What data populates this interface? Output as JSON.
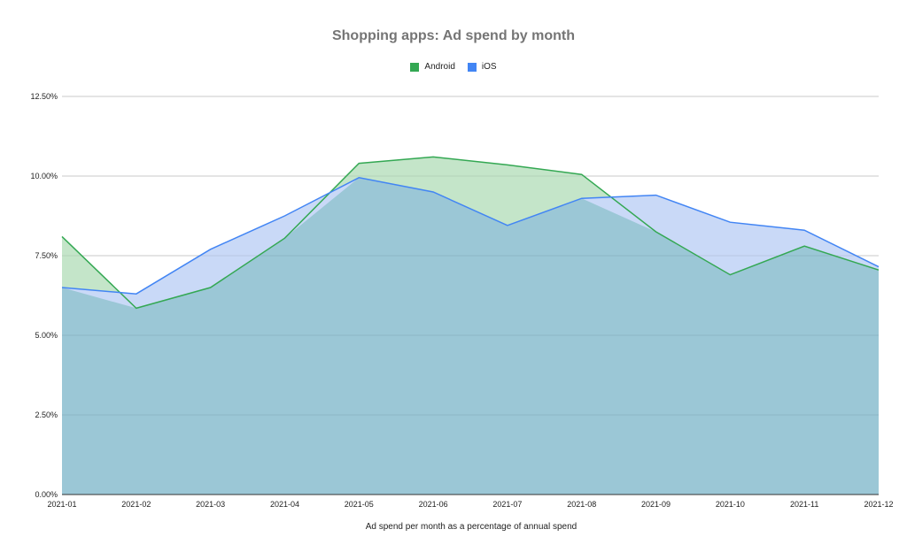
{
  "chart_data": {
    "type": "area",
    "title": "Shopping apps: Ad spend by month",
    "xlabel": "Ad spend per month as a percentage of annual spend",
    "ylabel": "",
    "categories": [
      "2021-01",
      "2021-02",
      "2021-03",
      "2021-04",
      "2021-05",
      "2021-06",
      "2021-07",
      "2021-08",
      "2021-09",
      "2021-10",
      "2021-11",
      "2021-12"
    ],
    "y_ticks": [
      "0.00%",
      "2.50%",
      "5.00%",
      "7.50%",
      "10.00%",
      "12.50%"
    ],
    "ylim": [
      0,
      12.5
    ],
    "grid": true,
    "legend_position": "top",
    "series": [
      {
        "name": "Android",
        "color": "#34a853",
        "fill": "#c4e5c9",
        "values": [
          8.1,
          5.85,
          6.5,
          8.05,
          10.4,
          10.6,
          10.35,
          10.05,
          8.25,
          6.9,
          7.8,
          7.05
        ]
      },
      {
        "name": "iOS",
        "color": "#4285f4",
        "fill": "#c9d9f7",
        "values": [
          6.5,
          6.3,
          7.7,
          8.75,
          9.95,
          9.5,
          8.45,
          9.3,
          9.4,
          8.55,
          8.3,
          7.15
        ]
      }
    ],
    "overlap_fill": "#9bc7d6"
  }
}
